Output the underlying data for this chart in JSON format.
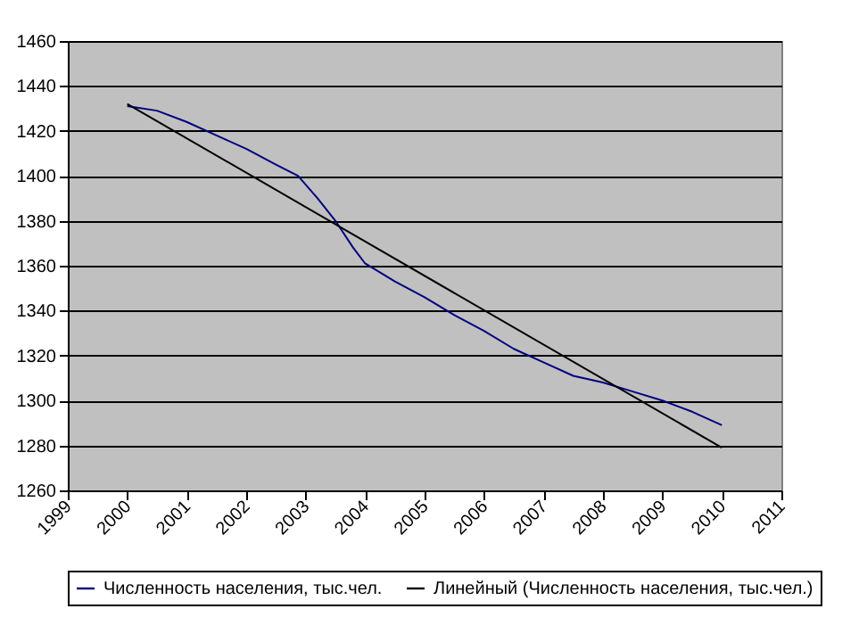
{
  "chart_data": {
    "type": "line",
    "series": [
      {
        "name": "Численность населения, тыс.чел.",
        "color": "#000080",
        "x": [
          2000,
          2000.5,
          2001,
          2001.5,
          2002,
          2002.5,
          2002.87,
          2003.2,
          2003.5,
          2003.8,
          2004,
          2004.5,
          2005,
          2005.5,
          2006,
          2006.5,
          2007,
          2007.5,
          2008,
          2008.5,
          2009,
          2009.5,
          2010
        ],
        "values": [
          1431,
          1429,
          1424,
          1418,
          1412,
          1405,
          1400,
          1390,
          1380,
          1368,
          1361,
          1353,
          1346,
          1338,
          1331,
          1323,
          1317,
          1311,
          1308,
          1304,
          1300,
          1295,
          1289
        ]
      },
      {
        "name": "Линейный (Численность населения, тыс.чел.)",
        "color": "#000000",
        "x": [
          2000,
          2010
        ],
        "values": [
          1432,
          1279
        ]
      }
    ],
    "xlim": [
      1999,
      2011
    ],
    "xticks": [
      1999,
      2000,
      2001,
      2002,
      2003,
      2004,
      2005,
      2006,
      2007,
      2008,
      2009,
      2010,
      2011
    ],
    "ylim": [
      1260,
      1460
    ],
    "yticks": [
      1260,
      1280,
      1300,
      1320,
      1340,
      1360,
      1380,
      1400,
      1420,
      1440,
      1460
    ],
    "grid": "y",
    "legend": "bottom",
    "marker": "none",
    "line_style": "solid"
  }
}
